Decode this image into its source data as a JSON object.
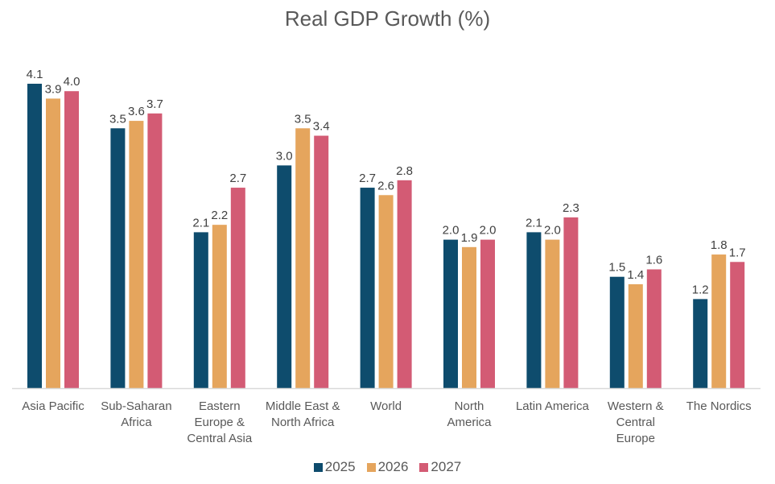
{
  "chart_data": {
    "type": "bar",
    "title": "Real GDP Growth (%)",
    "xlabel": "",
    "ylabel": "",
    "ylim": [
      0,
      4.1
    ],
    "grid": false,
    "legend_position": "bottom",
    "categories": [
      [
        "Asia Pacific"
      ],
      [
        "Sub-Saharan",
        "Africa"
      ],
      [
        "Eastern",
        "Europe &",
        "Central Asia"
      ],
      [
        "Middle East &",
        "North Africa"
      ],
      [
        "World"
      ],
      [
        "North",
        "America"
      ],
      [
        "Latin America"
      ],
      [
        "Western &",
        "Central",
        "Europe"
      ],
      [
        "The Nordics"
      ]
    ],
    "series": [
      {
        "name": "2025",
        "color": "#0E4C6D",
        "values": [
          4.1,
          3.5,
          2.1,
          3.0,
          2.7,
          2.0,
          2.1,
          1.5,
          1.2
        ]
      },
      {
        "name": "2026",
        "color": "#E5A55D",
        "values": [
          3.9,
          3.6,
          2.2,
          3.5,
          2.6,
          1.9,
          2.0,
          1.4,
          1.8
        ]
      },
      {
        "name": "2027",
        "color": "#D35B74",
        "values": [
          4.0,
          3.7,
          2.7,
          3.4,
          2.8,
          2.0,
          2.3,
          1.6,
          1.7
        ]
      }
    ],
    "data_labels": true,
    "label_format": "0.0"
  }
}
